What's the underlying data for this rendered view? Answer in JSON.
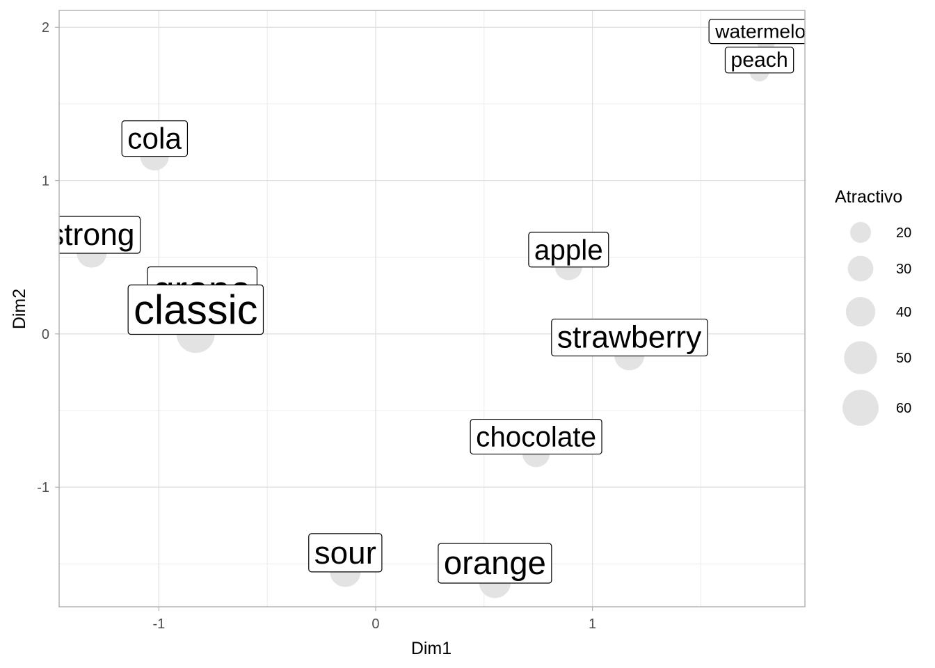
{
  "chart_data": {
    "type": "scatter",
    "title": "",
    "xlabel": "Dim1",
    "ylabel": "Dim2",
    "xlim": [
      -1.46,
      1.98
    ],
    "ylim": [
      -1.78,
      2.11
    ],
    "x_ticks": [
      -1,
      0,
      1
    ],
    "y_ticks": [
      -1,
      0,
      1,
      2
    ],
    "x_tick_labels": [
      "-1",
      "0",
      "1"
    ],
    "y_tick_labels": [
      "-1",
      "0",
      "1",
      "2"
    ],
    "grid": true,
    "legend": {
      "title": "Atractivo",
      "placement": "right",
      "values": [
        20,
        30,
        40,
        50,
        60
      ],
      "labels": [
        "20",
        "30",
        "40",
        "50",
        "60"
      ]
    },
    "point_color": "#e3e3e3",
    "points": [
      {
        "label": "cola",
        "x": -1.02,
        "y": 1.16,
        "size": 33
      },
      {
        "label": "strong",
        "x": -1.31,
        "y": 0.53,
        "size": 36
      },
      {
        "label": "grape",
        "x": -0.8,
        "y": 0.14,
        "size": 52
      },
      {
        "label": "classic",
        "x": -0.83,
        "y": 0.0,
        "size": 58
      },
      {
        "label": "apple",
        "x": 0.89,
        "y": 0.44,
        "size": 30
      },
      {
        "label": "strawberry",
        "x": 1.17,
        "y": -0.14,
        "size": 36
      },
      {
        "label": "chocolate",
        "x": 0.74,
        "y": -0.78,
        "size": 30
      },
      {
        "label": "sour",
        "x": -0.14,
        "y": -1.55,
        "size": 38
      },
      {
        "label": "orange",
        "x": 0.55,
        "y": -1.62,
        "size": 40
      },
      {
        "label": "peach",
        "x": 1.77,
        "y": 1.71,
        "size": 15
      },
      {
        "label": "watermelon",
        "x": 1.8,
        "y": 1.9,
        "size": 12
      }
    ]
  }
}
